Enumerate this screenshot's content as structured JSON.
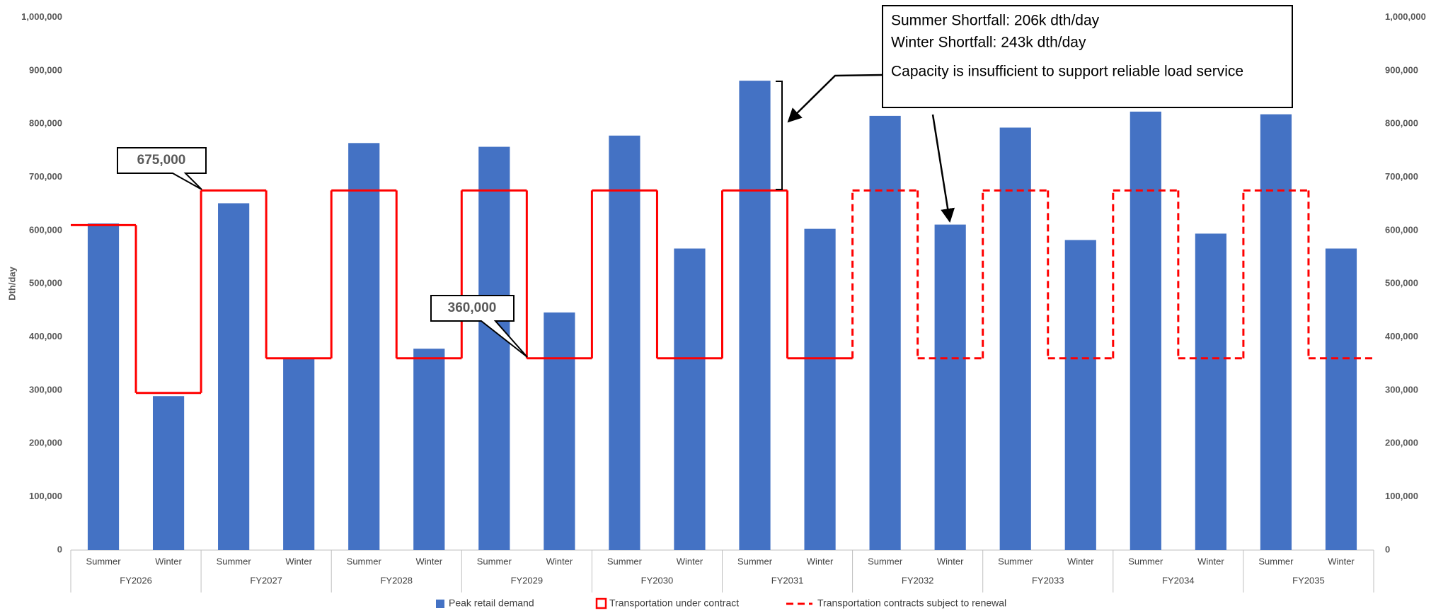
{
  "chart_data": {
    "type": "bar",
    "y_label": "Dth/day",
    "categories": [
      "Summer",
      "Winter",
      "Summer",
      "Winter",
      "Summer",
      "Winter",
      "Summer",
      "Winter",
      "Summer",
      "Winter",
      "Summer",
      "Winter",
      "Summer",
      "Winter",
      "Summer",
      "Winter",
      "Summer",
      "Winter",
      "Summer",
      "Winter"
    ],
    "groups": [
      "FY2026",
      "FY2027",
      "FY2028",
      "FY2029",
      "FY2030",
      "FY2031",
      "FY2032",
      "FY2033",
      "FY2034",
      "FY2035"
    ],
    "series": [
      {
        "name": "Peak retail demand",
        "color": "#4472c4",
        "kind": "bar",
        "values": [
          613000,
          289000,
          651000,
          360000,
          764000,
          378000,
          757000,
          446000,
          778000,
          566000,
          881000,
          603000,
          815000,
          611000,
          793000,
          582000,
          823000,
          594000,
          818000,
          566000
        ]
      },
      {
        "name": "Transportation under contract",
        "color": "#ff0000",
        "kind": "step",
        "dashed": false,
        "values": [
          610000,
          295000,
          675000,
          360000,
          675000,
          360000,
          675000,
          360000,
          675000,
          360000,
          675000,
          360000,
          null,
          null,
          null,
          null,
          null,
          null,
          null,
          null
        ]
      },
      {
        "name": "Transportation contracts subject to renewal",
        "color": "#ff0000",
        "kind": "step",
        "dashed": true,
        "values": [
          null,
          null,
          null,
          null,
          null,
          null,
          null,
          null,
          null,
          null,
          null,
          null,
          675000,
          360000,
          675000,
          360000,
          675000,
          360000,
          675000,
          360000
        ]
      }
    ],
    "ylim": [
      0,
      1000000
    ],
    "yticks": [
      0,
      {
        "value": 100000,
        "label": "100,000"
      },
      {
        "value": 200000,
        "label": "200,000"
      },
      {
        "value": 300000,
        "label": "300,000"
      },
      {
        "value": 400000,
        "label": "400,000"
      },
      {
        "value": 500000,
        "label": "500,000"
      },
      {
        "value": 600000,
        "label": "600,000"
      },
      {
        "value": 700000,
        "label": "700,000"
      },
      {
        "value": 800000,
        "label": "800,000"
      },
      {
        "value": 900000,
        "label": "900,000"
      },
      {
        "value": 1000000,
        "label": "1,000,000"
      }
    ],
    "right_axis_mirror": true,
    "grid": false,
    "legend": "bottom",
    "annotations": [
      "675,000",
      "360,000",
      "Summer Shortfall: 206k dth/day",
      "Winter Shortfall: 243k dth/day",
      "Capacity is insufficient to support reliable load service"
    ]
  }
}
